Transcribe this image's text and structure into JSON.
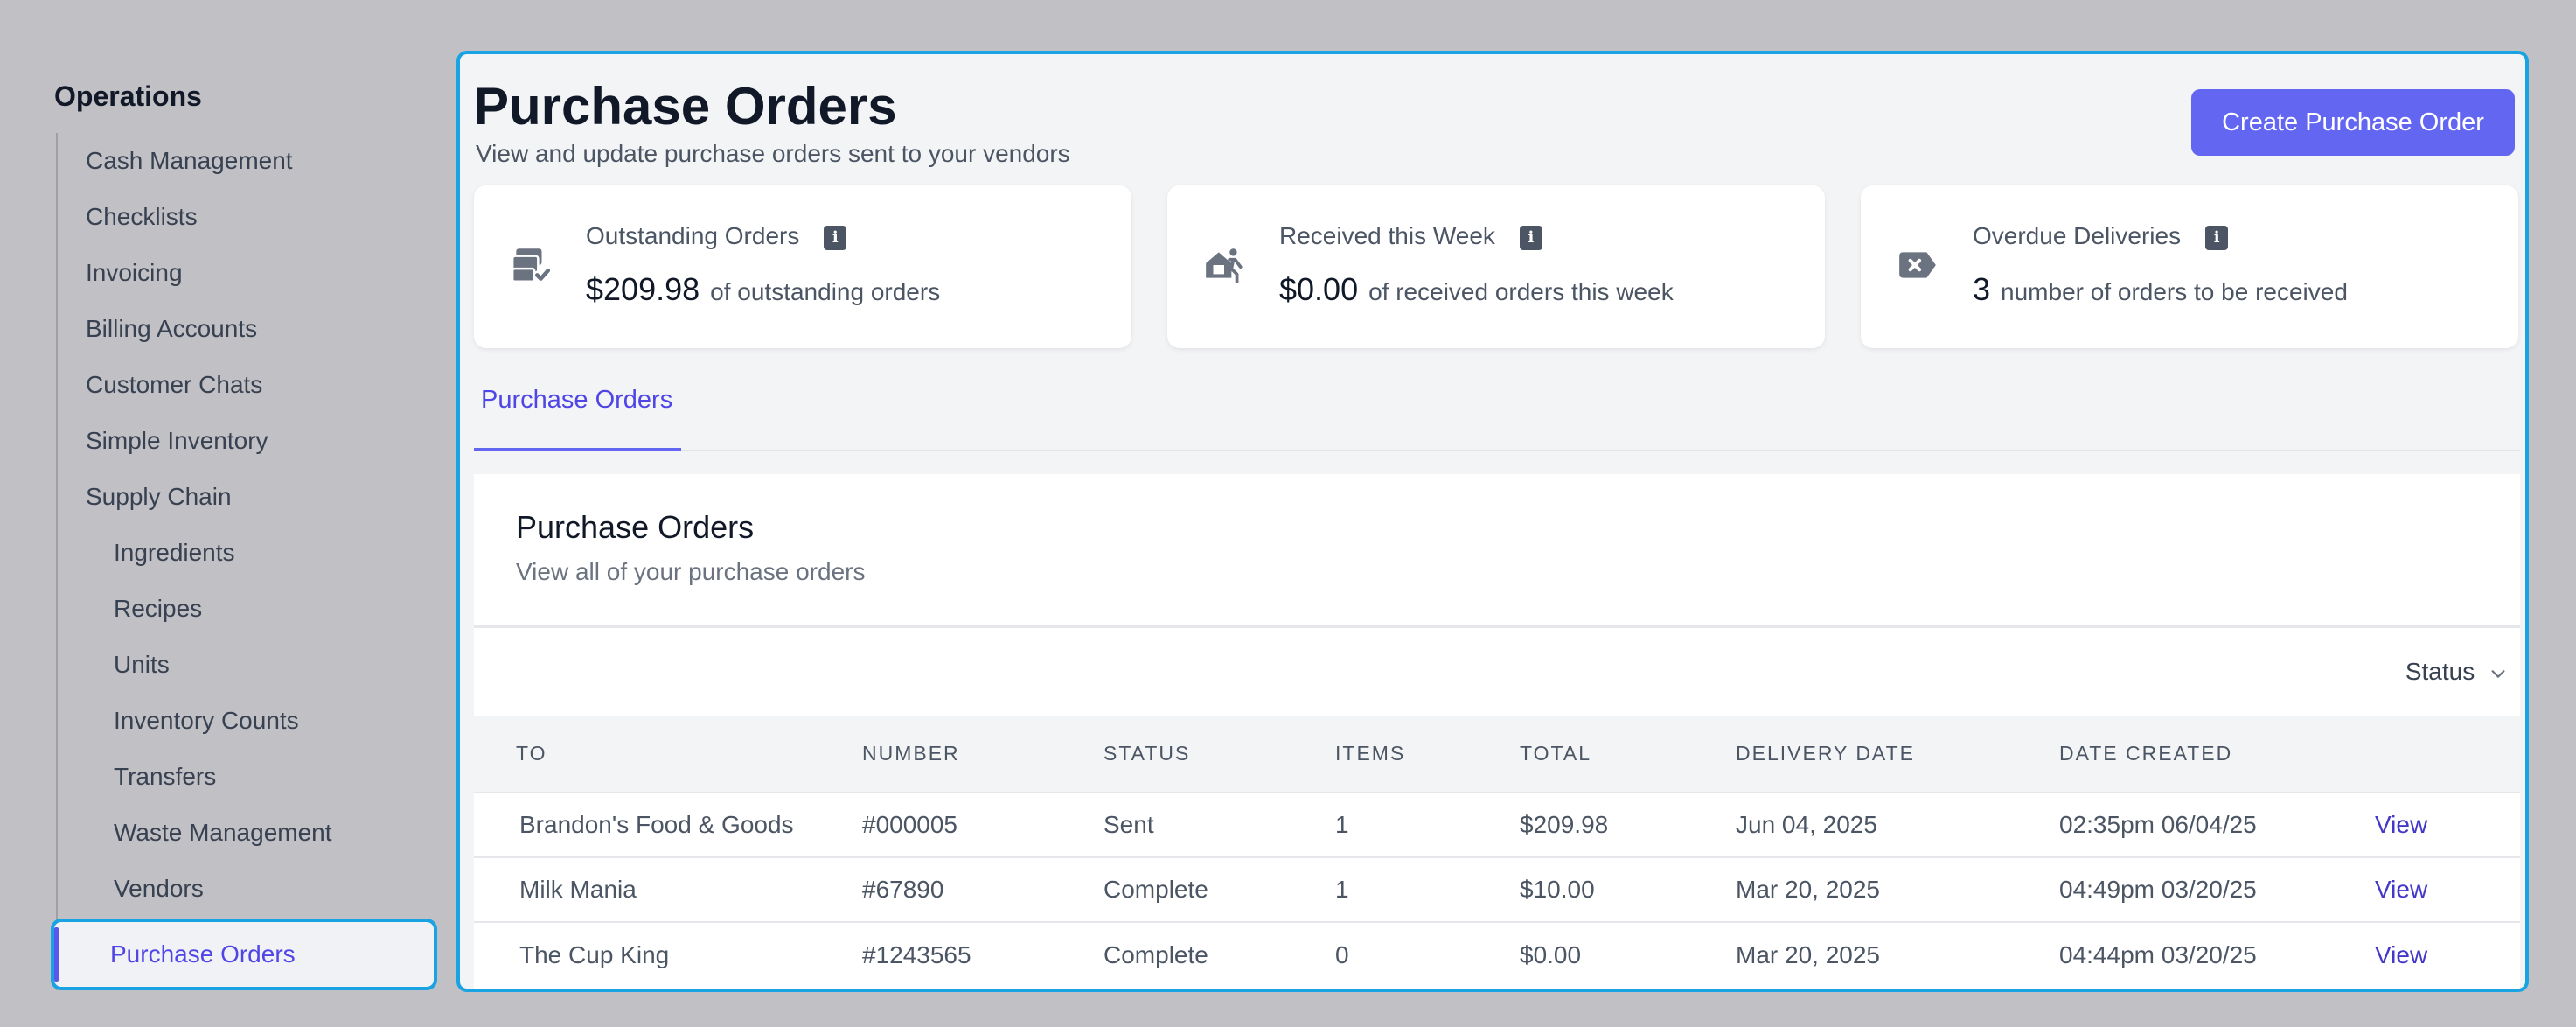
{
  "sidebar": {
    "heading": "Operations",
    "items": [
      {
        "label": "Cash Management"
      },
      {
        "label": "Checklists"
      },
      {
        "label": "Invoicing"
      },
      {
        "label": "Billing Accounts"
      },
      {
        "label": "Customer Chats"
      },
      {
        "label": "Simple Inventory"
      },
      {
        "label": "Supply Chain"
      }
    ],
    "sub_items": [
      {
        "label": "Ingredients"
      },
      {
        "label": "Recipes"
      },
      {
        "label": "Units"
      },
      {
        "label": "Inventory Counts"
      },
      {
        "label": "Transfers"
      },
      {
        "label": "Waste Management"
      },
      {
        "label": "Vendors"
      },
      {
        "label": "Purchase Orders",
        "active": true
      }
    ]
  },
  "header": {
    "title": "Purchase Orders",
    "subtitle": "View and update purchase orders sent to your vendors",
    "create_button": "Create Purchase Order"
  },
  "stats": [
    {
      "label": "Outstanding Orders",
      "value": "$209.98",
      "desc": "of outstanding orders",
      "icon": "money-stack-icon"
    },
    {
      "label": "Received this Week",
      "value": "$0.00",
      "desc": "of received orders this week",
      "icon": "delivery-box-icon"
    },
    {
      "label": "Overdue Deliveries",
      "value": "3",
      "desc": "number of orders to be received",
      "icon": "cancel-tag-icon"
    }
  ],
  "tabs": [
    {
      "label": "Purchase Orders",
      "active": true
    }
  ],
  "table": {
    "title": "Purchase Orders",
    "subtitle": "View all of your purchase orders",
    "filter_label": "Status",
    "columns": [
      "TO",
      "NUMBER",
      "STATUS",
      "ITEMS",
      "TOTAL",
      "DELIVERY DATE",
      "DATE CREATED",
      ""
    ],
    "rows": [
      {
        "to": "Brandon's Food & Goods",
        "number": "#000005",
        "status": "Sent",
        "items": "1",
        "total": "$209.98",
        "delivery": "Jun 04, 2025",
        "created": "02:35pm 06/04/25",
        "action": "View"
      },
      {
        "to": "Milk Mania",
        "number": "#67890",
        "status": "Complete",
        "items": "1",
        "total": "$10.00",
        "delivery": "Mar 20, 2025",
        "created": "04:49pm 03/20/25",
        "action": "View"
      },
      {
        "to": "The Cup King",
        "number": "#1243565",
        "status": "Complete",
        "items": "0",
        "total": "$0.00",
        "delivery": "Mar 20, 2025",
        "created": "04:44pm 03/20/25",
        "action": "View"
      }
    ]
  },
  "colors": {
    "accent": "#6366f1",
    "highlight_border": "#1aa3e2",
    "link": "#4338ca"
  }
}
